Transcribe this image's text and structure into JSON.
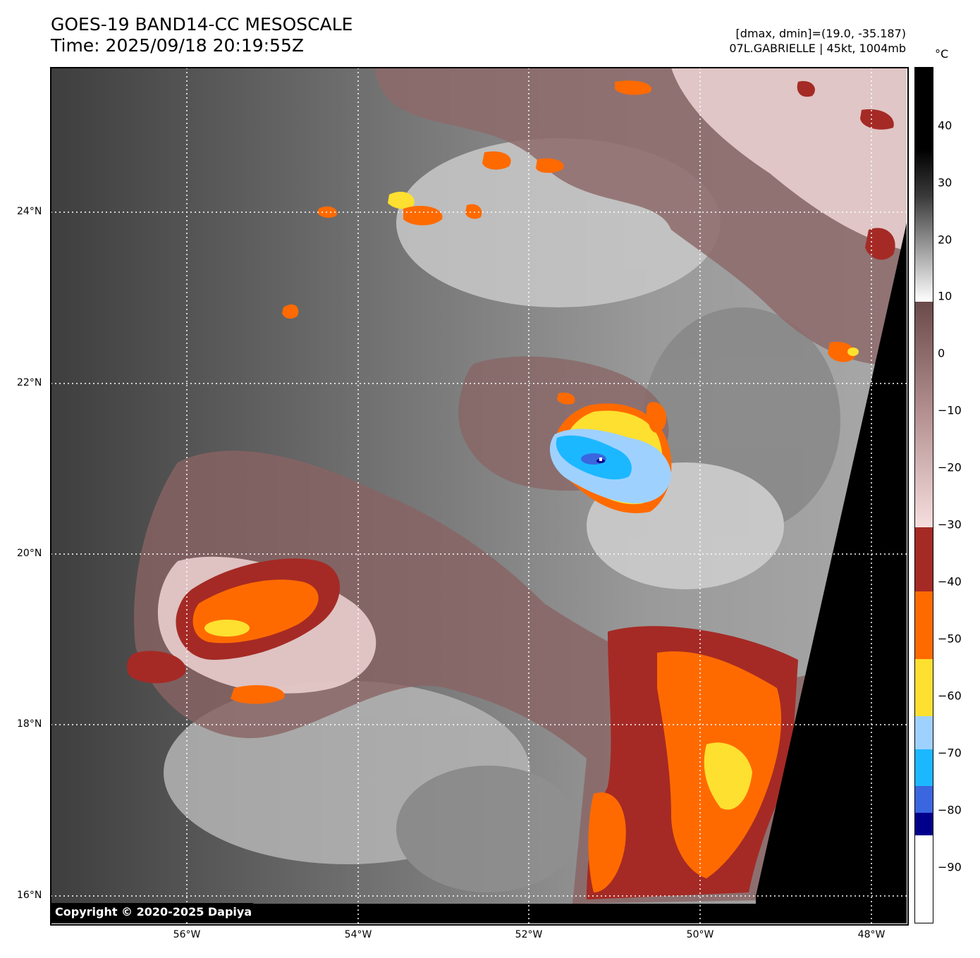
{
  "header": {
    "title_line1": "GOES-19 BAND14-CC MESOSCALE",
    "title_line2": "Time: 2025/09/18 20:19:55Z",
    "info_line1": "[dmax, dmin]=(19.0, -35.187)",
    "info_line2": "07L.GABRIELLE | 45kt, 1004mb"
  },
  "colorbar": {
    "unit": "°C",
    "ticks": [
      "40",
      "30",
      "20",
      "10",
      "0",
      "−10",
      "−20",
      "−30",
      "−40",
      "−50",
      "−60",
      "−70",
      "−80",
      "−90"
    ],
    "colors": {
      "black": "#000000",
      "gray_scale_top": "#2a2a2a",
      "white": "#f5f5f5",
      "brown": "#7a5656",
      "pink": "#f3d4d4",
      "dark_red": "#a52a25",
      "orange": "#ff6a00",
      "yellow": "#fde030",
      "light_blue": "#9fd1ff",
      "cyan": "#1cb8ff",
      "blue": "#3a66e0",
      "navy": "#00008b",
      "bottom_white": "#ffffff"
    }
  },
  "axes": {
    "lat_labels": [
      "24°N",
      "22°N",
      "20°N",
      "18°N",
      "16°N"
    ],
    "lon_labels": [
      "56°W",
      "54°W",
      "52°W",
      "50°W",
      "48°W"
    ]
  },
  "copyright": "Copyright © 2020-2025 Dapiya"
}
